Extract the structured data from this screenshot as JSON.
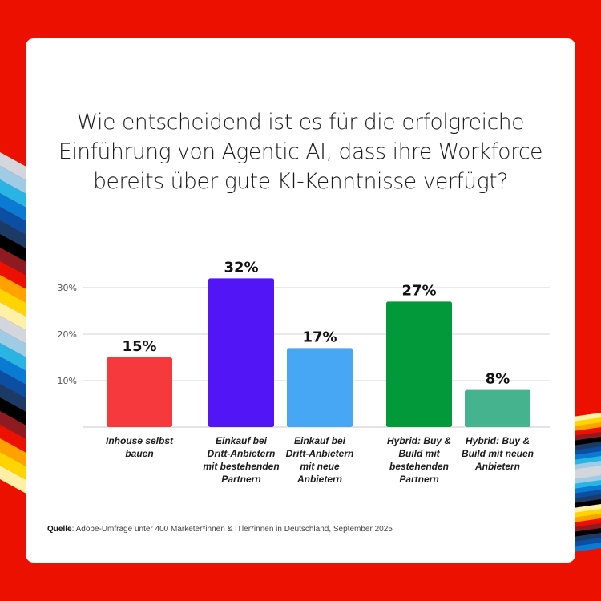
{
  "title": "Wie entscheidend ist es für die erfolgreiche\nEinführung von Agentic AI, dass ihre Workforce\nbereits über gute KI-Kenntnisse verfügt?",
  "source": {
    "label": "Quelle",
    "text": ": Adobe-Umfrage unter 400 Marketer*innen & ITler*innen in Deutschland, September 2025"
  },
  "colors": {
    "background": "#eb1000",
    "card": "#ffffff",
    "grid": "#dcdcdc",
    "stripes": [
      "#d4d6de",
      "#9fcbe4",
      "#2ab4e4",
      "#0a7bd2",
      "#0b4ea2",
      "#1b3a66",
      "#000000",
      "#8e1a22",
      "#eb1000",
      "#ffa200",
      "#ffd400",
      "#fff0a8"
    ]
  },
  "chart_data": {
    "type": "bar",
    "title": "Wie entscheidend ist es für die erfolgreiche Einführung von Agentic AI, dass ihre Workforce bereits über gute KI-Kenntnisse verfügt?",
    "xlabel": "",
    "ylabel": "",
    "ylim": [
      0,
      30
    ],
    "yticks": [
      10,
      20,
      30
    ],
    "ytick_labels": [
      "10%",
      "20%",
      "30%"
    ],
    "grid": true,
    "legend": "none",
    "categories": [
      "Inhouse selbst\nbauen",
      "Einkauf bei\nDritt-Anbietern\nmit bestehenden\nPartnern",
      "Einkauf bei\nDritt-Anbietern\nmit neue\nAnbietern",
      "Hybrid: Buy &\nBuild mit\nbestehenden\nPartnern",
      "Hybrid: Buy &\nBuild mit neuen\nAnbietern"
    ],
    "values": [
      15,
      32,
      17,
      27,
      8
    ],
    "value_labels": [
      "15%",
      "32%",
      "17%",
      "27%",
      "8%"
    ],
    "bar_colors": [
      "#f5393c",
      "#5115f6",
      "#47a7f5",
      "#02993a",
      "#45b38e"
    ]
  }
}
